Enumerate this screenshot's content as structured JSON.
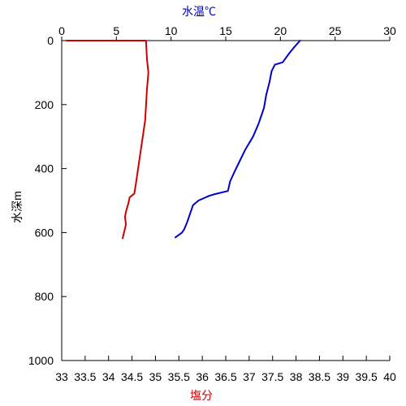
{
  "chart_data": {
    "type": "line",
    "ylabel": "水深m",
    "top_axis": {
      "label": "水温℃",
      "range": [
        0,
        30
      ],
      "ticks": [
        0,
        5,
        10,
        15,
        20,
        25,
        30
      ],
      "color": "#0000c8"
    },
    "bottom_axis": {
      "label": "塩分",
      "range": [
        33,
        40
      ],
      "ticks": [
        "33",
        "33.5",
        "34",
        "34.5",
        "35",
        "35.5",
        "36",
        "36.5",
        "37",
        "37.5",
        "38",
        "38.5",
        "39",
        "39.5",
        "40"
      ],
      "color": "#d00000"
    },
    "y_axis": {
      "range": [
        0,
        1000
      ],
      "inverted": true,
      "ticks": [
        0,
        200,
        400,
        600,
        800,
        1000
      ]
    },
    "grid": false,
    "series": [
      {
        "axis": "top",
        "color": "#0000c8",
        "points": [
          {
            "value": 21.8,
            "depth": 0
          },
          {
            "value": 21.4,
            "depth": 15
          },
          {
            "value": 20.8,
            "depth": 40
          },
          {
            "value": 20.2,
            "depth": 68
          },
          {
            "value": 19.5,
            "depth": 75
          },
          {
            "value": 19.2,
            "depth": 95
          },
          {
            "value": 19.0,
            "depth": 130
          },
          {
            "value": 18.7,
            "depth": 170
          },
          {
            "value": 18.5,
            "depth": 210
          },
          {
            "value": 18.0,
            "depth": 260
          },
          {
            "value": 17.5,
            "depth": 300
          },
          {
            "value": 16.8,
            "depth": 340
          },
          {
            "value": 16.3,
            "depth": 375
          },
          {
            "value": 15.8,
            "depth": 410
          },
          {
            "value": 15.4,
            "depth": 440
          },
          {
            "value": 15.2,
            "depth": 470
          },
          {
            "value": 14.0,
            "depth": 480
          },
          {
            "value": 13.5,
            "depth": 485
          },
          {
            "value": 12.5,
            "depth": 500
          },
          {
            "value": 12.0,
            "depth": 515
          },
          {
            "value": 11.7,
            "depth": 545
          },
          {
            "value": 11.5,
            "depth": 565
          },
          {
            "value": 11.2,
            "depth": 590
          },
          {
            "value": 11.0,
            "depth": 600
          },
          {
            "value": 10.4,
            "depth": 615
          }
        ]
      },
      {
        "axis": "bottom",
        "color": "#d00000",
        "points": [
          {
            "value": 33.1,
            "depth": 0
          },
          {
            "value": 34.8,
            "depth": 0
          },
          {
            "value": 34.8,
            "depth": 5
          },
          {
            "value": 34.82,
            "depth": 60
          },
          {
            "value": 34.85,
            "depth": 100
          },
          {
            "value": 34.82,
            "depth": 150
          },
          {
            "value": 34.8,
            "depth": 200
          },
          {
            "value": 34.78,
            "depth": 250
          },
          {
            "value": 34.73,
            "depth": 300
          },
          {
            "value": 34.68,
            "depth": 350
          },
          {
            "value": 34.63,
            "depth": 400
          },
          {
            "value": 34.58,
            "depth": 450
          },
          {
            "value": 34.55,
            "depth": 478
          },
          {
            "value": 34.45,
            "depth": 490
          },
          {
            "value": 34.42,
            "depth": 510
          },
          {
            "value": 34.38,
            "depth": 530
          },
          {
            "value": 34.35,
            "depth": 550
          },
          {
            "value": 34.37,
            "depth": 575
          },
          {
            "value": 34.33,
            "depth": 600
          },
          {
            "value": 34.3,
            "depth": 618
          }
        ]
      }
    ]
  }
}
